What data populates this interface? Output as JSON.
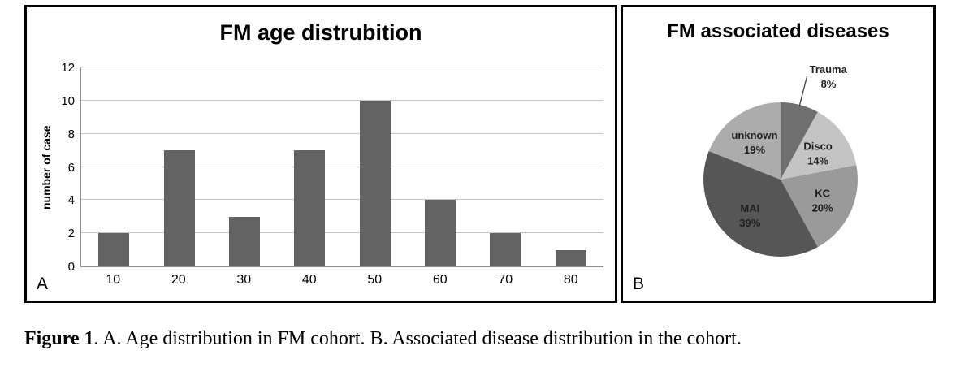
{
  "figure": {
    "caption_label": "Figure 1",
    "caption_text": ". A. Age distribution in FM cohort. B. Associated disease distribution in the cohort."
  },
  "panel_a": {
    "letter": "A"
  },
  "panel_b": {
    "letter": "B"
  },
  "chart_data": [
    {
      "type": "bar",
      "title": "FM age distrubition",
      "xlabel": "",
      "ylabel": "number of case",
      "categories": [
        "10",
        "20",
        "30",
        "40",
        "50",
        "60",
        "70",
        "80"
      ],
      "values": [
        2,
        7,
        3,
        7,
        10,
        4,
        2,
        1
      ],
      "ylim": [
        0,
        12
      ],
      "yticks": [
        0,
        2,
        4,
        6,
        8,
        10,
        12
      ],
      "grid": true,
      "legend": "none",
      "bar_color": "#636363",
      "gridline_color": "#c6c6c6",
      "axis_color": "#8c8c8c"
    },
    {
      "type": "pie",
      "title": "FM associated diseases",
      "start_angle_deg": -90,
      "direction": "clockwise",
      "label_color": "#1f1f1f",
      "leader_line_color": "#404040",
      "slices": [
        {
          "label": "Trauma",
          "pct": 8,
          "color": "#6f6f6f",
          "label_outside": true
        },
        {
          "label": "Disco",
          "pct": 14,
          "color": "#c4c4c4",
          "label_outside": false
        },
        {
          "label": "KC",
          "pct": 20,
          "color": "#9a9a9a",
          "label_outside": false
        },
        {
          "label": "MAI",
          "pct": 39,
          "color": "#565656",
          "label_outside": false
        },
        {
          "label": "unknown",
          "pct": 19,
          "color": "#acacac",
          "label_outside": false
        }
      ]
    }
  ]
}
